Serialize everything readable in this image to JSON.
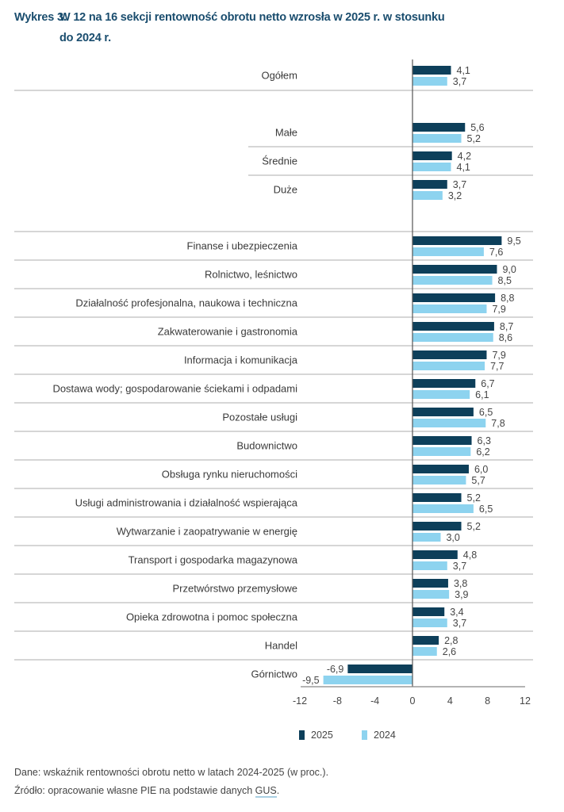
{
  "figure": {
    "number": "Wykres 3.",
    "title_lines": [
      "W 12 na 16 sekcji rentowność obrotu netto wzrosła w 2025 r. w stosunku",
      "do 2024 r."
    ]
  },
  "chart_data": {
    "type": "bar",
    "orientation": "horizontal",
    "title": "W 12 na 16 sekcji rentowność obrotu netto wzrosła w 2025 r. w stosunku do 2024 r.",
    "xlabel": "",
    "ylabel": "",
    "xlim": [
      -12,
      12
    ],
    "xticks": [
      -12,
      -8,
      -4,
      0,
      4,
      8,
      12
    ],
    "xtick_labels": [
      "-12",
      "-8",
      "-4",
      "0",
      "4",
      "8",
      "12"
    ],
    "grid": false,
    "legend_position": "bottom",
    "categories": [
      "Ogółem",
      "Małe",
      "Średnie",
      "Duże",
      "Finanse i ubezpieczenia",
      "Rolnictwo, leśnictwo",
      "Działalność profesjonalna, naukowa i techniczna",
      "Zakwaterowanie i gastronomia",
      "Informacja i komunikacja",
      "Dostawa wody; gospodarowanie ściekami i odpadami",
      "Pozostałe usługi",
      "Budownictwo",
      "Obsługa rynku nieruchomości",
      "Usługi administrowania i działalność wspierająca",
      "Wytwarzanie i zaopatrywanie w energię",
      "Transport i gospodarka magazynowa",
      "Przetwórstwo przemysłowe",
      "Opieka zdrowotna i pomoc społeczna",
      "Handel",
      "Górnictwo"
    ],
    "category_groups": [
      "total",
      "size",
      "size",
      "size",
      "section",
      "section",
      "section",
      "section",
      "section",
      "section",
      "section",
      "section",
      "section",
      "section",
      "section",
      "section",
      "section",
      "section",
      "section",
      "section"
    ],
    "series": [
      {
        "name": "2025",
        "color": "#0d3f5a",
        "values": [
          4.1,
          5.6,
          4.2,
          3.7,
          9.5,
          9.0,
          8.8,
          8.7,
          7.9,
          6.7,
          6.5,
          6.3,
          6.0,
          5.2,
          5.2,
          4.8,
          3.8,
          3.4,
          2.8,
          -6.9
        ],
        "value_labels": [
          "4,1",
          "5,6",
          "4,2",
          "3,7",
          "9,5",
          "9,0",
          "8,8",
          "8,7",
          "7,9",
          "6,7",
          "6,5",
          "6,3",
          "6,0",
          "5,2",
          "5,2",
          "4,8",
          "3,8",
          "3,4",
          "2,8",
          "-6,9"
        ]
      },
      {
        "name": "2024",
        "color": "#8dd3ef",
        "values": [
          3.7,
          5.2,
          4.1,
          3.2,
          7.6,
          8.5,
          7.9,
          8.6,
          7.7,
          6.1,
          7.8,
          6.2,
          5.7,
          6.5,
          3.0,
          3.7,
          3.9,
          3.7,
          2.6,
          -9.5
        ],
        "value_labels": [
          "3,7",
          "5,2",
          "4,1",
          "3,2",
          "7,6",
          "8,5",
          "7,9",
          "8,6",
          "7,7",
          "6,1",
          "7,8",
          "6,2",
          "5,7",
          "6,5",
          "3,0",
          "3,7",
          "3,9",
          "3,7",
          "2,6",
          "-9,5"
        ]
      }
    ]
  },
  "notes": {
    "data_line": "Dane: wskaźnik rentowności obrotu netto w latach 2024-2025 (w proc.).",
    "source_prefix": "Źródło: opracowanie własne PIE na podstawie danych ",
    "source_link": "GUS",
    "source_suffix": "."
  }
}
